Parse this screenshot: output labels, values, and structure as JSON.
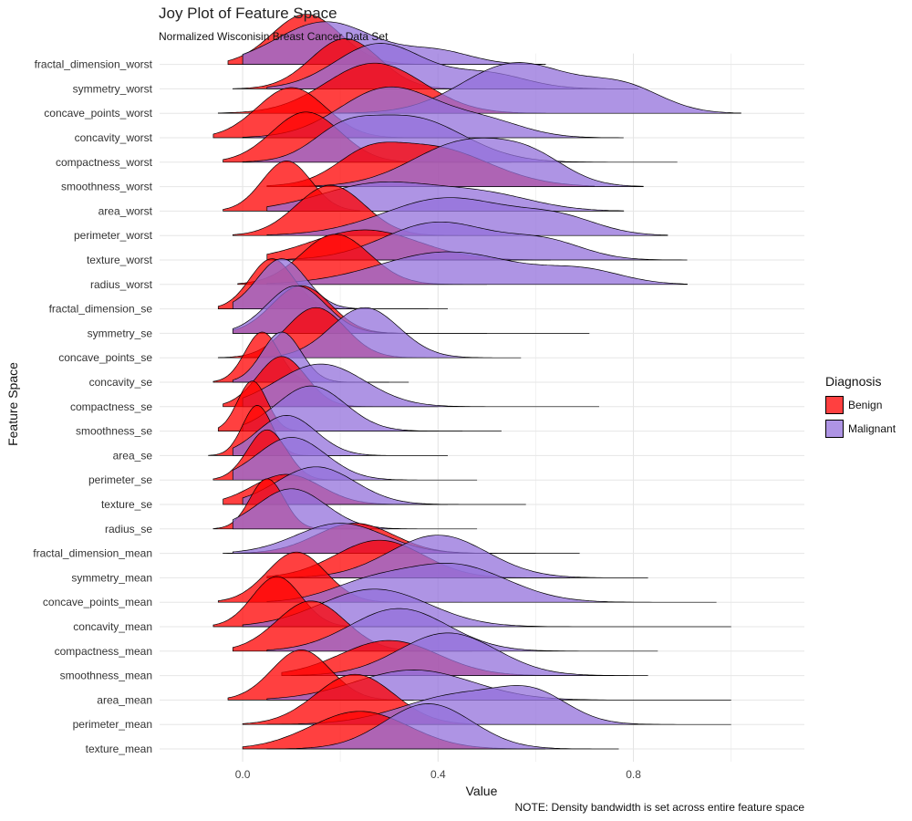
{
  "header": {
    "title": "Joy Plot of Feature Space",
    "subtitle": "Normalized Wisconisin Breast Cancer Data Set"
  },
  "footer": {
    "note": "NOTE: Density bandwidth is set across entire feature space"
  },
  "legend": {
    "title": "Diagnosis",
    "items": [
      {
        "label": "Benign",
        "color": "#ff0000"
      },
      {
        "label": "Malignant",
        "color": "#9370db"
      }
    ]
  },
  "chart_data": {
    "type": "area",
    "subtype": "ridgeline",
    "title": "Joy Plot of Feature Space",
    "subtitle": "Normalized Wisconisin Breast Cancer Data Set",
    "xlabel": "Value",
    "ylabel": "Feature Space",
    "xlim": [
      -0.17,
      1.15
    ],
    "xticks": [
      0.0,
      0.4,
      0.8
    ],
    "xtick_labels": [
      "0.0",
      "0.4",
      "0.8"
    ],
    "grid": true,
    "legend_position": "right",
    "fill_opacity": 0.75,
    "colors": {
      "Benign": "#ff0000",
      "Malignant": "#9370db"
    },
    "features": [
      {
        "name": "fractal_dimension_worst",
        "benign": {
          "components": [
            [
              0.13,
              0.07,
              1.0
            ]
          ],
          "range": [
            -0.03,
            0.5
          ]
        },
        "malignant": {
          "components": [
            [
              0.17,
              0.1,
              0.85
            ],
            [
              0.4,
              0.07,
              0.25
            ]
          ],
          "range": [
            0.0,
            0.62
          ]
        }
      },
      {
        "name": "symmetry_worst",
        "benign": {
          "components": [
            [
              0.21,
              0.07,
              1.0
            ]
          ],
          "range": [
            -0.02,
            0.68
          ]
        },
        "malignant": {
          "components": [
            [
              0.28,
              0.09,
              0.9
            ],
            [
              0.5,
              0.08,
              0.3
            ]
          ],
          "range": [
            0.05,
            0.81
          ]
        }
      },
      {
        "name": "concave_points_worst",
        "benign": {
          "components": [
            [
              0.27,
              0.1,
              1.0
            ]
          ],
          "range": [
            -0.05,
            0.62
          ]
        },
        "malignant": {
          "components": [
            [
              0.56,
              0.11,
              1.0
            ],
            [
              0.78,
              0.08,
              0.5
            ]
          ],
          "range": [
            0.1,
            1.02
          ]
        }
      },
      {
        "name": "concavity_worst",
        "benign": {
          "components": [
            [
              0.1,
              0.07,
              1.0
            ]
          ],
          "range": [
            -0.06,
            0.45
          ]
        },
        "malignant": {
          "components": [
            [
              0.3,
              0.1,
              1.0
            ],
            [
              0.5,
              0.08,
              0.3
            ]
          ],
          "range": [
            0.0,
            0.78
          ]
        }
      },
      {
        "name": "compactness_worst",
        "benign": {
          "components": [
            [
              0.13,
              0.07,
              1.0
            ]
          ],
          "range": [
            -0.04,
            0.55
          ]
        },
        "malignant": {
          "components": [
            [
              0.34,
              0.11,
              0.9
            ],
            [
              0.2,
              0.06,
              0.4
            ]
          ],
          "range": [
            0.0,
            0.89
          ]
        }
      },
      {
        "name": "smoothness_worst",
        "benign": {
          "components": [
            [
              0.38,
              0.12,
              0.8
            ],
            [
              0.25,
              0.06,
              0.35
            ]
          ],
          "range": [
            0.05,
            0.72
          ]
        },
        "malignant": {
          "components": [
            [
              0.46,
              0.11,
              0.9
            ],
            [
              0.6,
              0.07,
              0.35
            ]
          ],
          "range": [
            0.1,
            0.82
          ]
        }
      },
      {
        "name": "area_worst",
        "benign": {
          "components": [
            [
              0.09,
              0.05,
              1.0
            ]
          ],
          "range": [
            -0.04,
            0.24
          ]
        },
        "malignant": {
          "components": [
            [
              0.28,
              0.12,
              0.55
            ],
            [
              0.5,
              0.1,
              0.3
            ]
          ],
          "range": [
            0.05,
            0.78
          ]
        }
      },
      {
        "name": "perimeter_worst",
        "benign": {
          "components": [
            [
              0.18,
              0.07,
              1.0
            ]
          ],
          "range": [
            -0.02,
            0.5
          ]
        },
        "malignant": {
          "components": [
            [
              0.42,
              0.13,
              0.75
            ],
            [
              0.65,
              0.08,
              0.3
            ]
          ],
          "range": [
            0.05,
            0.87
          ]
        }
      },
      {
        "name": "texture_worst",
        "benign": {
          "components": [
            [
              0.25,
              0.11,
              0.6
            ]
          ],
          "range": [
            0.05,
            0.63
          ]
        },
        "malignant": {
          "components": [
            [
              0.4,
              0.11,
              0.75
            ],
            [
              0.62,
              0.08,
              0.35
            ]
          ],
          "range": [
            0.05,
            0.91
          ]
        }
      },
      {
        "name": "radius_worst",
        "benign": {
          "components": [
            [
              0.19,
              0.07,
              1.0
            ]
          ],
          "range": [
            -0.01,
            0.5
          ]
        },
        "malignant": {
          "components": [
            [
              0.42,
              0.14,
              0.65
            ],
            [
              0.7,
              0.08,
              0.25
            ]
          ],
          "range": [
            0.05,
            0.91
          ]
        }
      },
      {
        "name": "fractal_dimension_se",
        "benign": {
          "components": [
            [
              0.06,
              0.045,
              1.0
            ]
          ],
          "range": [
            -0.05,
            0.38
          ]
        },
        "malignant": {
          "components": [
            [
              0.08,
              0.05,
              1.0
            ]
          ],
          "range": [
            -0.02,
            0.42
          ]
        }
      },
      {
        "name": "symmetry_se",
        "benign": {
          "components": [
            [
              0.12,
              0.06,
              0.95
            ]
          ],
          "range": [
            -0.02,
            0.5
          ]
        },
        "malignant": {
          "components": [
            [
              0.11,
              0.06,
              0.95
            ]
          ],
          "range": [
            -0.02,
            0.71
          ]
        }
      },
      {
        "name": "concave_points_se",
        "benign": {
          "components": [
            [
              0.15,
              0.06,
              1.0
            ]
          ],
          "range": [
            -0.05,
            0.42
          ]
        },
        "malignant": {
          "components": [
            [
              0.25,
              0.07,
              1.0
            ]
          ],
          "range": [
            0.0,
            0.57
          ]
        }
      },
      {
        "name": "concavity_se",
        "benign": {
          "components": [
            [
              0.04,
              0.035,
              1.0
            ]
          ],
          "range": [
            -0.06,
            0.3
          ]
        },
        "malignant": {
          "components": [
            [
              0.08,
              0.04,
              1.0
            ]
          ],
          "range": [
            -0.02,
            0.34
          ]
        }
      },
      {
        "name": "compactness_se",
        "benign": {
          "components": [
            [
              0.08,
              0.05,
              1.0
            ]
          ],
          "range": [
            -0.04,
            0.4
          ]
        },
        "malignant": {
          "components": [
            [
              0.16,
              0.09,
              0.85
            ]
          ],
          "range": [
            0.0,
            0.73
          ]
        }
      },
      {
        "name": "smoothness_se",
        "benign": {
          "components": [
            [
              0.02,
              0.03,
              1.0
            ]
          ],
          "range": [
            -0.05,
            0.45
          ]
        },
        "malignant": {
          "components": [
            [
              0.14,
              0.07,
              0.9
            ]
          ],
          "range": [
            0.0,
            0.53
          ]
        }
      },
      {
        "name": "area_se",
        "benign": {
          "components": [
            [
              0.03,
              0.03,
              1.0
            ]
          ],
          "range": [
            -0.07,
            0.22
          ]
        },
        "malignant": {
          "components": [
            [
              0.09,
              0.06,
              0.8
            ]
          ],
          "range": [
            -0.02,
            0.42
          ]
        }
      },
      {
        "name": "perimeter_se",
        "benign": {
          "components": [
            [
              0.05,
              0.04,
              1.0
            ]
          ],
          "range": [
            -0.06,
            0.3
          ]
        },
        "malignant": {
          "components": [
            [
              0.1,
              0.07,
              0.85
            ]
          ],
          "range": [
            -0.02,
            0.48
          ]
        }
      },
      {
        "name": "texture_se",
        "benign": {
          "components": [
            [
              0.09,
              0.07,
              0.6
            ]
          ],
          "range": [
            -0.04,
            0.42
          ]
        },
        "malignant": {
          "components": [
            [
              0.15,
              0.08,
              0.75
            ]
          ],
          "range": [
            0.0,
            0.58
          ]
        }
      },
      {
        "name": "radius_se",
        "benign": {
          "components": [
            [
              0.05,
              0.035,
              1.0
            ]
          ],
          "range": [
            -0.06,
            0.3
          ]
        },
        "malignant": {
          "components": [
            [
              0.1,
              0.07,
              0.8
            ]
          ],
          "range": [
            -0.02,
            0.48
          ]
        }
      },
      {
        "name": "fractal_dimension_mean",
        "benign": {
          "components": [
            [
              0.23,
              0.08,
              0.6
            ]
          ],
          "range": [
            -0.04,
            0.6
          ]
        },
        "malignant": {
          "components": [
            [
              0.2,
              0.09,
              0.6
            ]
          ],
          "range": [
            -0.02,
            0.69
          ]
        }
      },
      {
        "name": "symmetry_mean",
        "benign": {
          "components": [
            [
              0.28,
              0.09,
              0.75
            ]
          ],
          "range": [
            0.05,
            0.67
          ]
        },
        "malignant": {
          "components": [
            [
              0.4,
              0.1,
              0.85
            ]
          ],
          "range": [
            0.05,
            0.83
          ]
        }
      },
      {
        "name": "concave_points_mean",
        "benign": {
          "components": [
            [
              0.11,
              0.06,
              1.0
            ]
          ],
          "range": [
            -0.05,
            0.45
          ]
        },
        "malignant": {
          "components": [
            [
              0.43,
              0.11,
              0.75
            ],
            [
              0.25,
              0.08,
              0.3
            ]
          ],
          "range": [
            0.05,
            0.97
          ]
        }
      },
      {
        "name": "concavity_mean",
        "benign": {
          "components": [
            [
              0.07,
              0.05,
              1.0
            ]
          ],
          "range": [
            -0.06,
            0.4
          ]
        },
        "malignant": {
          "components": [
            [
              0.27,
              0.11,
              0.75
            ]
          ],
          "range": [
            0.0,
            1.0
          ]
        }
      },
      {
        "name": "compactness_mean",
        "benign": {
          "components": [
            [
              0.14,
              0.07,
              1.0
            ]
          ],
          "range": [
            -0.02,
            0.47
          ]
        },
        "malignant": {
          "components": [
            [
              0.32,
              0.1,
              0.85
            ]
          ],
          "range": [
            0.05,
            0.85
          ]
        }
      },
      {
        "name": "smoothness_mean",
        "benign": {
          "components": [
            [
              0.3,
              0.1,
              0.7
            ]
          ],
          "range": [
            0.08,
            0.67
          ]
        },
        "malignant": {
          "components": [
            [
              0.42,
              0.1,
              0.85
            ]
          ],
          "range": [
            0.1,
            0.83
          ]
        }
      },
      {
        "name": "area_mean",
        "benign": {
          "components": [
            [
              0.12,
              0.06,
              1.0
            ]
          ],
          "range": [
            -0.03,
            0.35
          ]
        },
        "malignant": {
          "components": [
            [
              0.35,
              0.12,
              0.6
            ]
          ],
          "range": [
            0.05,
            1.0
          ]
        }
      },
      {
        "name": "perimeter_mean",
        "benign": {
          "components": [
            [
              0.23,
              0.08,
              1.0
            ]
          ],
          "range": [
            0.0,
            0.6
          ]
        },
        "malignant": {
          "components": [
            [
              0.45,
              0.12,
              0.6
            ],
            [
              0.6,
              0.07,
              0.45
            ]
          ],
          "range": [
            0.05,
            1.0
          ]
        }
      },
      {
        "name": "texture_mean",
        "benign": {
          "components": [
            [
              0.24,
              0.1,
              0.75
            ]
          ],
          "range": [
            0.0,
            0.62
          ]
        },
        "malignant": {
          "components": [
            [
              0.38,
              0.09,
              0.9
            ]
          ],
          "range": [
            0.05,
            0.77
          ]
        }
      }
    ]
  }
}
